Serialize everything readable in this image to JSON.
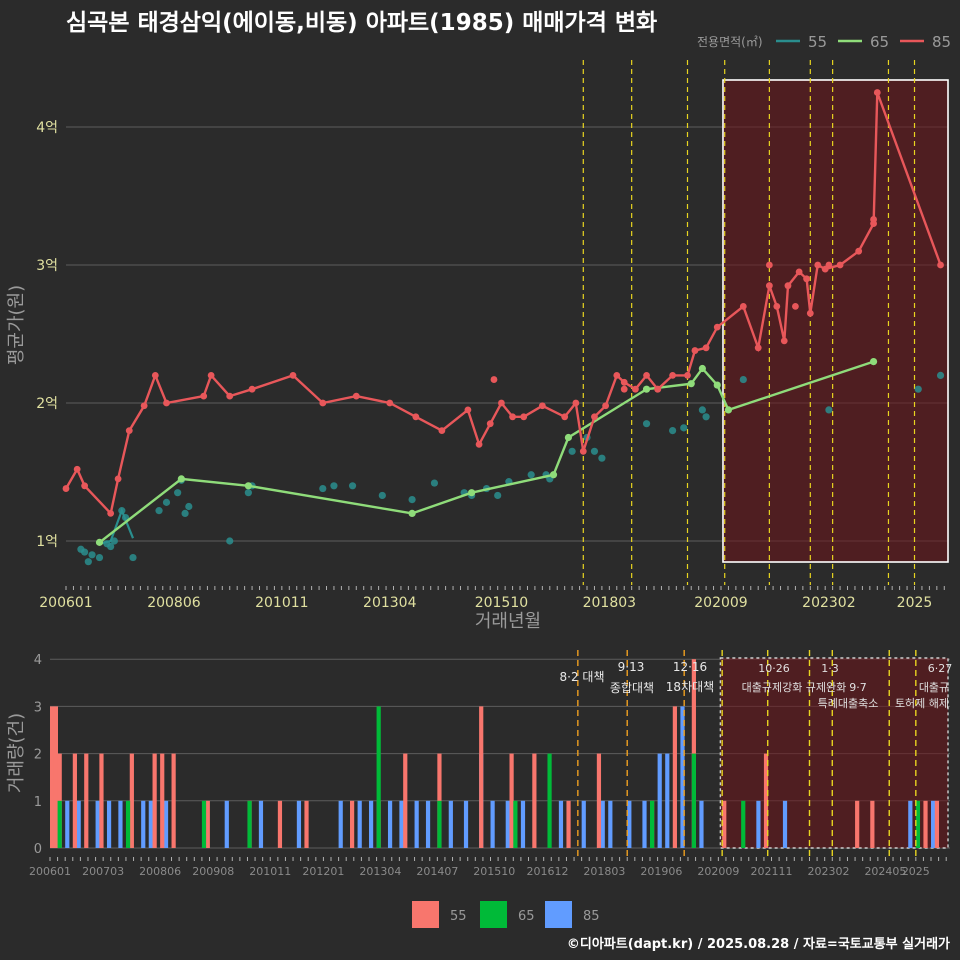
{
  "title": "심곡본 태경삼익(에이동,비동) 아파트(1985) 매매가격 변화",
  "footer": "©디아파트(dapt.kr) / 2025.08.28 / 자료=국토교통부 실거래가",
  "colors": {
    "s55": "#f8766d",
    "s65": "#00ba38",
    "s85": "#619cff",
    "l55": "#2a8e8e",
    "l65": "#8fdc7a",
    "l85": "#e8575a",
    "event": "#e8d520",
    "event2": "#f0a020"
  },
  "chart_data": [
    {
      "type": "line",
      "title": "심곡본 태경삼익(에이동,비동) 아파트(1985) 매매가격 변화",
      "xlabel": "거래년월",
      "ylabel": "평균가(원)",
      "legend_title": "전용면적(㎡)",
      "legend_placement": "top-right",
      "x_ticks": [
        "200601",
        "200806",
        "201011",
        "201304",
        "201510",
        "201803",
        "202009",
        "202302",
        "2025"
      ],
      "y_ticks": [
        "1억",
        "2억",
        "3억",
        "4억"
      ],
      "ylim": [
        0.75,
        4.45
      ],
      "y_unit": "억",
      "event_dates": [
        "2017-08",
        "2018-09",
        "2019-12",
        "2020-10",
        "2021-10",
        "2022-09",
        "2023-03",
        "2024-06",
        "2025-01"
      ],
      "highlight_range": [
        "2020-09",
        "2025-08"
      ],
      "series": [
        {
          "name": "55",
          "scatter": [
            [
              "2006-05",
              0.94
            ],
            [
              "2006-06",
              0.92
            ],
            [
              "2006-07",
              0.85
            ],
            [
              "2006-08",
              0.9
            ],
            [
              "2006-10",
              0.88
            ],
            [
              "2006-12",
              0.98
            ],
            [
              "2007-01",
              0.96
            ],
            [
              "2007-02",
              1.0
            ],
            [
              "2007-04",
              1.22
            ],
            [
              "2007-05",
              1.17
            ],
            [
              "2007-07",
              0.88
            ],
            [
              "2008-02",
              1.22
            ],
            [
              "2008-04",
              1.28
            ],
            [
              "2008-07",
              1.35
            ],
            [
              "2008-08",
              1.44
            ],
            [
              "2008-09",
              1.2
            ],
            [
              "2008-10",
              1.25
            ],
            [
              "2009-09",
              1.0
            ],
            [
              "2010-02",
              1.35
            ],
            [
              "2010-03",
              1.4
            ],
            [
              "2011-10",
              1.38
            ],
            [
              "2012-01",
              1.4
            ],
            [
              "2012-06",
              1.4
            ],
            [
              "2013-02",
              1.33
            ],
            [
              "2013-10",
              1.3
            ],
            [
              "2014-04",
              1.42
            ],
            [
              "2014-12",
              1.35
            ],
            [
              "2015-02",
              1.33
            ],
            [
              "2015-06",
              1.38
            ],
            [
              "2015-09",
              1.33
            ],
            [
              "2015-12",
              1.43
            ],
            [
              "2016-06",
              1.48
            ],
            [
              "2016-10",
              1.48
            ],
            [
              "2016-11",
              1.45
            ],
            [
              "2017-05",
              1.65
            ],
            [
              "2017-09",
              1.75
            ],
            [
              "2017-11",
              1.65
            ],
            [
              "2018-01",
              1.6
            ],
            [
              "2019-01",
              1.85
            ],
            [
              "2019-08",
              1.8
            ],
            [
              "2019-11",
              1.82
            ],
            [
              "2020-04",
              1.95
            ],
            [
              "2020-05",
              1.9
            ],
            [
              "2021-03",
              2.17
            ],
            [
              "2023-02",
              1.95
            ],
            [
              "2025-02",
              2.1
            ],
            [
              "2025-08",
              2.2
            ]
          ],
          "line": [
            [
              "2006-10",
              0.98
            ],
            [
              "2007-01",
              1.0
            ],
            [
              "2007-04",
              1.22
            ],
            [
              "2007-07",
              1.02
            ]
          ]
        },
        {
          "name": "65",
          "line": [
            [
              "2006-10",
              0.99
            ],
            [
              "2008-08",
              1.45
            ],
            [
              "2010-02",
              1.4
            ],
            [
              "2013-10",
              1.2
            ],
            [
              "2015-02",
              1.35
            ],
            [
              "2016-12",
              1.48
            ],
            [
              "2017-04",
              1.75
            ],
            [
              "2019-01",
              2.1
            ],
            [
              "2020-01",
              2.14
            ],
            [
              "2020-04",
              2.25
            ],
            [
              "2020-08",
              2.13
            ],
            [
              "2020-11",
              1.95
            ],
            [
              "2024-02",
              2.3
            ]
          ]
        },
        {
          "name": "85",
          "line": [
            [
              "2006-01",
              1.38
            ],
            [
              "2006-04",
              1.52
            ],
            [
              "2006-06",
              1.4
            ],
            [
              "2007-01",
              1.2
            ],
            [
              "2007-03",
              1.45
            ],
            [
              "2007-06",
              1.8
            ],
            [
              "2007-10",
              1.98
            ],
            [
              "2008-01",
              2.2
            ],
            [
              "2008-04",
              2.0
            ],
            [
              "2009-02",
              2.05
            ],
            [
              "2009-04",
              2.2
            ],
            [
              "2009-09",
              2.05
            ],
            [
              "2010-03",
              2.1
            ],
            [
              "2011-02",
              2.2
            ],
            [
              "2011-10",
              2.0
            ],
            [
              "2012-07",
              2.05
            ],
            [
              "2013-04",
              2.0
            ],
            [
              "2013-11",
              1.9
            ],
            [
              "2014-06",
              1.8
            ],
            [
              "2015-01",
              1.95
            ],
            [
              "2015-04",
              1.7
            ],
            [
              "2015-07",
              1.85
            ],
            [
              "2015-10",
              2.0
            ],
            [
              "2016-01",
              1.9
            ],
            [
              "2016-04",
              1.9
            ],
            [
              "2016-09",
              1.98
            ],
            [
              "2017-03",
              1.9
            ],
            [
              "2017-06",
              2.0
            ],
            [
              "2017-08",
              1.65
            ],
            [
              "2017-11",
              1.9
            ],
            [
              "2018-02",
              1.98
            ],
            [
              "2018-05",
              2.2
            ],
            [
              "2018-07",
              2.15
            ],
            [
              "2018-10",
              2.1
            ],
            [
              "2019-01",
              2.2
            ],
            [
              "2019-04",
              2.1
            ],
            [
              "2019-08",
              2.2
            ],
            [
              "2019-12",
              2.2
            ],
            [
              "2020-02",
              2.38
            ],
            [
              "2020-05",
              2.4
            ],
            [
              "2020-08",
              2.55
            ],
            [
              "2021-03",
              2.7
            ],
            [
              "2021-07",
              2.4
            ],
            [
              "2021-10",
              2.85
            ],
            [
              "2021-12",
              2.7
            ],
            [
              "2022-02",
              2.45
            ],
            [
              "2022-03",
              2.85
            ],
            [
              "2022-06",
              2.95
            ],
            [
              "2022-08",
              2.9
            ],
            [
              "2022-09",
              2.65
            ],
            [
              "2022-11",
              3.0
            ],
            [
              "2023-01",
              2.97
            ],
            [
              "2023-05",
              3.0
            ],
            [
              "2023-10",
              3.1
            ],
            [
              "2024-02",
              3.3
            ],
            [
              "2024-03",
              4.25
            ],
            [
              "2025-08",
              3.0
            ]
          ],
          "extra_points": [
            [
              "2015-08",
              2.17
            ],
            [
              "2018-07",
              2.1
            ],
            [
              "2019-04",
              2.1
            ],
            [
              "2021-10",
              3.0
            ],
            [
              "2022-05",
              2.7
            ],
            [
              "2023-02",
              3.0
            ],
            [
              "2024-02",
              3.33
            ]
          ]
        }
      ]
    },
    {
      "type": "bar",
      "xlabel": "",
      "ylabel": "거래량(건)",
      "x_ticks": [
        "200601",
        "200703",
        "200806",
        "200908",
        "201011",
        "201201",
        "201304",
        "201407",
        "201510",
        "201612",
        "201803",
        "201906",
        "202009",
        "202111",
        "202302",
        "202405",
        "2025"
      ],
      "y_ticks": [
        "0",
        "1",
        "2",
        "3",
        "4"
      ],
      "ylim": [
        0,
        4
      ],
      "annotations": [
        "8·2 대책",
        "9·13",
        "종합대책",
        "12·16",
        "18차대책",
        "10·26",
        "1·3",
        "대출규제강화",
        "규제완화",
        "9·7",
        "특례대출축소",
        "6·27",
        "대출규",
        "토허제 해제"
      ],
      "legend": [
        "55",
        "65",
        "85"
      ],
      "bars": {
        "s55": [
          [
            "2006-01",
            3
          ],
          [
            "2006-02",
            3
          ],
          [
            "2006-03",
            2
          ],
          [
            "2006-07",
            2
          ],
          [
            "2006-10",
            2
          ],
          [
            "2007-02",
            2
          ],
          [
            "2007-10",
            2
          ],
          [
            "2008-04",
            2
          ],
          [
            "2008-06",
            2
          ],
          [
            "2008-09",
            2
          ],
          [
            "2009-06",
            1
          ],
          [
            "2010-05",
            1
          ],
          [
            "2011-01",
            1
          ],
          [
            "2011-08",
            1
          ],
          [
            "2012-08",
            1
          ],
          [
            "2013-03",
            1
          ],
          [
            "2013-10",
            2
          ],
          [
            "2014-07",
            2
          ],
          [
            "2015-06",
            3
          ],
          [
            "2016-02",
            2
          ],
          [
            "2016-08",
            2
          ],
          [
            "2017-05",
            1
          ],
          [
            "2018-01",
            2
          ],
          [
            "2019-03",
            1
          ],
          [
            "2019-09",
            3
          ],
          [
            "2020-02",
            4
          ],
          [
            "2020-10",
            1
          ],
          [
            "2021-09",
            2
          ],
          [
            "2023-09",
            1
          ],
          [
            "2024-01",
            1
          ],
          [
            "2025-03",
            1
          ],
          [
            "2025-06",
            1
          ]
        ],
        "s65": [
          [
            "2006-03",
            1
          ],
          [
            "2007-09",
            1
          ],
          [
            "2009-05",
            1
          ],
          [
            "2010-05",
            1
          ],
          [
            "2013-03",
            3
          ],
          [
            "2014-07",
            1
          ],
          [
            "2016-03",
            1
          ],
          [
            "2016-12",
            2
          ],
          [
            "2019-03",
            1
          ],
          [
            "2020-02",
            2
          ],
          [
            "2021-03",
            1
          ],
          [
            "2025-01",
            1
          ]
        ],
        "s85": [
          [
            "2006-01",
            1
          ],
          [
            "2006-05",
            1
          ],
          [
            "2006-08",
            1
          ],
          [
            "2007-01",
            1
          ],
          [
            "2007-04",
            1
          ],
          [
            "2007-07",
            1
          ],
          [
            "2008-01",
            1
          ],
          [
            "2008-03",
            1
          ],
          [
            "2008-07",
            1
          ],
          [
            "2009-11",
            1
          ],
          [
            "2010-08",
            1
          ],
          [
            "2011-06",
            1
          ],
          [
            "2012-05",
            1
          ],
          [
            "2012-10",
            1
          ],
          [
            "2013-01",
            1
          ],
          [
            "2013-06",
            1
          ],
          [
            "2013-09",
            1
          ],
          [
            "2014-01",
            1
          ],
          [
            "2014-04",
            1
          ],
          [
            "2014-10",
            1
          ],
          [
            "2015-02",
            1
          ],
          [
            "2015-06",
            2
          ],
          [
            "2015-09",
            1
          ],
          [
            "2016-01",
            1
          ],
          [
            "2016-05",
            1
          ],
          [
            "2017-03",
            1
          ],
          [
            "2017-09",
            1
          ],
          [
            "2018-02",
            1
          ],
          [
            "2018-04",
            1
          ],
          [
            "2018-09",
            1
          ],
          [
            "2019-01",
            1
          ],
          [
            "2019-05",
            2
          ],
          [
            "2019-07",
            2
          ],
          [
            "2019-11",
            3
          ],
          [
            "2020-04",
            1
          ],
          [
            "2021-07",
            1
          ],
          [
            "2022-02",
            1
          ],
          [
            "2024-11",
            1
          ],
          [
            "2025-05",
            1
          ]
        ]
      }
    }
  ]
}
